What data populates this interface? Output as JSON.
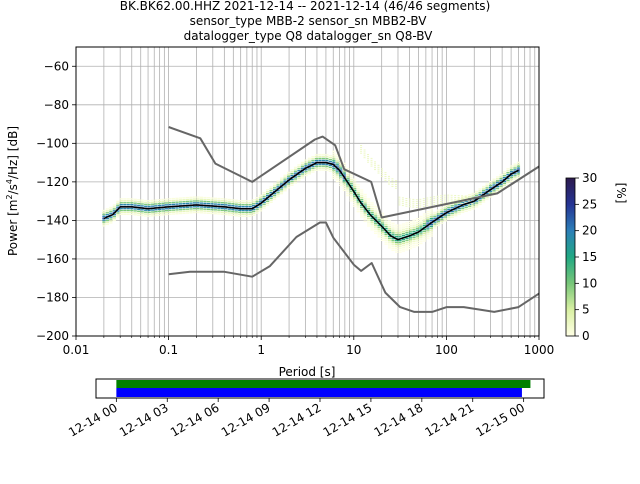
{
  "title": {
    "line1": "BK.BK62.00.HHZ   2021-12-14 -- 2021-12-14  (46/46 segments)",
    "line2": "sensor_type MBB-2 sensor_sn MBB2-BV",
    "line3": "datalogger_type Q8 datalogger_sn Q8-BV"
  },
  "colors": {
    "mode_line": "#000000",
    "noise_model": "#666666",
    "grid": "#b0b0b0",
    "coverage_green": "#008000",
    "coverage_blue": "#0000ff",
    "colormap": [
      "#ffffe5",
      "#d9f0a3",
      "#78c679",
      "#21a883",
      "#2c7fb8",
      "#253494",
      "#2d1a4e"
    ]
  },
  "chart_data": [
    {
      "type": "heatmap",
      "title": "",
      "xlabel": "Period [s]",
      "ylabel_parts": [
        "Power [m",
        "2",
        "/s",
        "4",
        "/Hz] [dB]"
      ],
      "x_scale": "log",
      "xlim": [
        0.01,
        1000
      ],
      "ylim": [
        -200,
        -50
      ],
      "x_ticks": [
        0.01,
        0.1,
        1,
        10,
        100,
        1000
      ],
      "x_tick_labels": [
        "0.01",
        "0.1",
        "1",
        "10",
        "100",
        "1000"
      ],
      "y_ticks": [
        -200,
        -180,
        -160,
        -140,
        -120,
        -100,
        -80,
        -60
      ],
      "y_tick_labels": [
        "−200",
        "−180",
        "−160",
        "−140",
        "−120",
        "−100",
        "−80",
        "−60"
      ],
      "grid": true,
      "colorbar": {
        "label": "[%]",
        "range": [
          0,
          30
        ],
        "ticks": [
          0,
          5,
          10,
          15,
          20,
          25,
          30
        ],
        "tick_labels": [
          "0",
          "5",
          "10",
          "15",
          "20",
          "25",
          "30"
        ]
      },
      "series": [
        {
          "kind": "mode",
          "x": [
            0.02,
            0.025,
            0.03,
            0.04,
            0.06,
            0.1,
            0.2,
            0.4,
            0.6,
            0.8,
            1,
            1.5,
            2,
            3,
            4,
            5,
            6,
            7,
            8,
            10,
            12,
            15,
            20,
            25,
            30,
            40,
            50,
            70,
            100,
            150,
            200,
            300,
            400,
            500,
            600
          ],
          "y": [
            -139,
            -137,
            -133,
            -133,
            -134,
            -133,
            -132,
            -133,
            -134,
            -134,
            -131,
            -124,
            -119,
            -113,
            -110,
            -110,
            -111,
            -114,
            -118,
            -125,
            -131,
            -137,
            -143,
            -148,
            -150,
            -148,
            -146,
            -141,
            -136,
            -132,
            -130,
            -124,
            -120,
            -116,
            -114
          ]
        },
        {
          "kind": "noise-model-high",
          "x": [
            0.1,
            0.22,
            0.32,
            0.8,
            3.8,
            4.6,
            6.3,
            7.9,
            15.4,
            20,
            354.8,
            1000
          ],
          "y": [
            -91.5,
            -97.4,
            -110.5,
            -120,
            -98,
            -96.5,
            -101,
            -113.5,
            -120,
            -138.5,
            -126,
            -112
          ]
        },
        {
          "kind": "noise-model-low",
          "x": [
            0.1,
            0.17,
            0.4,
            0.8,
            1.24,
            2.4,
            4.3,
            5,
            6,
            10,
            12,
            15.6,
            21.9,
            31.6,
            45,
            70,
            101,
            154,
            328,
            600,
            1000
          ],
          "y": [
            -168,
            -166.7,
            -166.7,
            -169.2,
            -163.7,
            -148.6,
            -141.1,
            -141.1,
            -149,
            -163,
            -166.2,
            -162.1,
            -177.5,
            -185,
            -187.5,
            -187.5,
            -185,
            -185,
            -187.5,
            -185,
            -178
          ]
        }
      ]
    },
    {
      "type": "bar",
      "title": "",
      "xlabel": "",
      "x_tick_labels": [
        "12-14 00",
        "12-14 03",
        "12-14 06",
        "12-14 09",
        "12-14 12",
        "12-14 15",
        "12-14 18",
        "12-14 21",
        "12-15 00"
      ],
      "x_hours_range": [
        -1.2,
        25.2
      ],
      "series": [
        {
          "name": "",
          "start_hour": 0,
          "end_hour": 24.4,
          "color": "green"
        },
        {
          "name": "",
          "start_hour": 0,
          "end_hour": 23.9,
          "color": "blue"
        }
      ]
    }
  ]
}
